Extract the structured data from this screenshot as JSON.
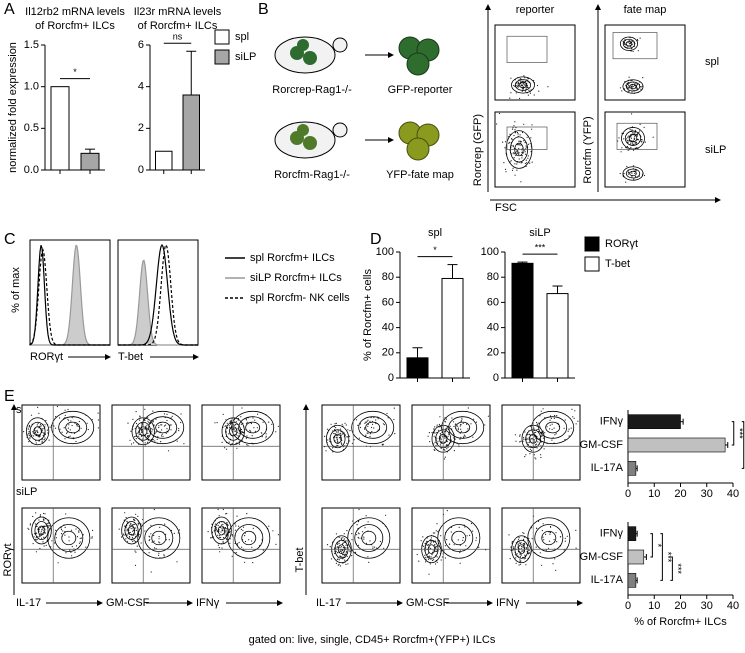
{
  "panel_labels": [
    "A",
    "B",
    "C",
    "D",
    "E"
  ],
  "schematic": {
    "mouse1": "Rorcrep-Rag1-/-",
    "cell1": "GFP-reporter",
    "mouse2": "Rorcfm-Rag1-/-",
    "cell2": "YFP-fate map"
  },
  "flow_b": {
    "col1": "reporter",
    "col2": "fate map",
    "row1": "spl",
    "row2": "siLP",
    "x_label": "FSC",
    "y1": "Rorcrep (GFP)",
    "y2": "Rorcfm (YFP)"
  },
  "histograms": {
    "y_label": "% of max",
    "x1": "RORγt",
    "x2": "T-bet",
    "legend": [
      "spl Rorcfm+ ILCs",
      "siLP Rorcfm+ ILCs",
      "spl Rorcfm- NK cells"
    ]
  },
  "flow_e": {
    "row1": "spl",
    "row2": "siLP",
    "y1": "RORγt",
    "y2": "T-bet",
    "x_labels": [
      "IL-17",
      "GM-CSF",
      "IFNγ",
      "IL-17",
      "GM-CSF",
      "IFNγ"
    ],
    "footnote": "gated on: live, single, CD45+ Rorcfm+(YFP+) ILCs"
  },
  "chart_data": [
    {
      "type": "bar",
      "title": [
        "Il12rb2 mRNA levels",
        "of Rorcfm+ ILCs"
      ],
      "y_label": "normalized fold expression",
      "categories": [
        null,
        null
      ],
      "values": [
        1.0,
        0.2
      ],
      "errors": [
        null,
        0.05
      ],
      "colors": [
        "#ffffff",
        "#a6a6a6"
      ],
      "ylim": [
        0,
        1.5
      ],
      "yticks": [
        {
          "value": 0,
          "label": "0.0"
        },
        {
          "value": 0.5,
          "label": "0.5"
        },
        {
          "value": 1,
          "label": "1.0"
        },
        {
          "value": 1.5,
          "label": "1.5"
        }
      ],
      "annotations": [
        "*"
      ]
    },
    {
      "type": "bar",
      "title": [
        "Il23r mRNA levels",
        "of Rorcfm+ ILCs"
      ],
      "categories": [
        null,
        null
      ],
      "values": [
        0.9,
        3.6
      ],
      "errors": [
        null,
        2.1
      ],
      "colors": [
        "#ffffff",
        "#a6a6a6"
      ],
      "ylim": [
        0,
        6
      ],
      "yticks": [
        0,
        2,
        4,
        6
      ],
      "annotations": [
        "ns"
      ],
      "legend": [
        {
          "name": "spl",
          "color": "#ffffff"
        },
        {
          "name": "siLP",
          "color": "#a6a6a6"
        }
      ]
    },
    {
      "type": "bar",
      "title": "spl",
      "y_label": "% of Rorcfm+ cells",
      "categories": [
        null,
        null
      ],
      "values": [
        16,
        79
      ],
      "errors": [
        8,
        11
      ],
      "colors": [
        "#000000",
        "#ffffff"
      ],
      "ylim": [
        0,
        100
      ],
      "yticks": [
        0,
        20,
        40,
        60,
        80,
        100
      ],
      "annotations": [
        "*"
      ]
    },
    {
      "type": "bar",
      "title": "siLP",
      "categories": [
        null,
        null
      ],
      "values": [
        91,
        67
      ],
      "errors": [
        1,
        6
      ],
      "colors": [
        "#000000",
        "#ffffff"
      ],
      "ylim": [
        0,
        100
      ],
      "yticks": [
        0,
        20,
        40,
        60,
        80,
        100
      ],
      "annotations": [
        "***"
      ],
      "legend": [
        {
          "name": "RORγt",
          "color": "#000000"
        },
        {
          "name": "T-bet",
          "color": "#ffffff"
        }
      ]
    },
    {
      "type": "bar",
      "orientation": "horizontal",
      "categories": [
        "IFNγ",
        "GM-CSF",
        "IL-17A"
      ],
      "values": [
        20,
        37,
        3
      ],
      "errors": [
        1,
        1,
        0.5
      ],
      "colors": [
        "#1a1a1a",
        "#c0c0c0",
        "#808080"
      ],
      "xlim": [
        0,
        40
      ],
      "xticks": [
        0,
        10,
        20,
        30,
        40
      ],
      "annotations": [
        "***",
        "***",
        "***"
      ]
    },
    {
      "type": "bar",
      "orientation": "horizontal",
      "categories": [
        "IFNγ",
        "GM-CSF",
        "IL-17A"
      ],
      "values": [
        3,
        6,
        3
      ],
      "errors": [
        0.5,
        1,
        0.5
      ],
      "colors": [
        "#1a1a1a",
        "#c0c0c0",
        "#808080"
      ],
      "xlim": [
        0,
        40
      ],
      "xticks": [
        0,
        10,
        20,
        30,
        40
      ],
      "x_label": "% of Rorcfm+ ILCs",
      "annotations": [
        "*",
        "***",
        "***"
      ]
    }
  ]
}
